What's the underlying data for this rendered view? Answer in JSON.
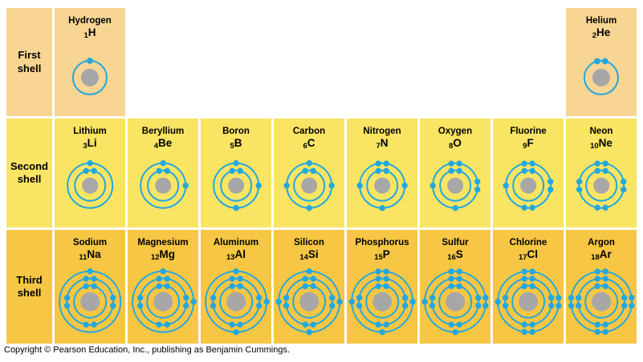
{
  "title": "Electron shell diagrams of the first 18 elements",
  "colors": {
    "row_first_bg": "#F8D593",
    "row_second_bg": "#F9E463",
    "row_third_bg": "#F6C644",
    "electron": "#22A8E0",
    "orbit": "#22A8E0",
    "nucleus": "#A7A7A7",
    "text": "#000000",
    "gap": "#FFFFFF"
  },
  "rows": [
    {
      "label_lines": [
        "First",
        "shell"
      ],
      "label_id": "first",
      "bg": "#F8D593",
      "elements": [
        {
          "col": 1,
          "name": "Hydrogen",
          "atomic_number": "1",
          "symbol": "H",
          "shells": [
            1
          ]
        },
        {
          "col": 8,
          "name": "Helium",
          "atomic_number": "2",
          "symbol": "He",
          "shells": [
            2
          ]
        }
      ]
    },
    {
      "label_lines": [
        "Second",
        "shell"
      ],
      "label_id": "second",
      "bg": "#F9E463",
      "elements": [
        {
          "col": 1,
          "name": "Lithium",
          "atomic_number": "3",
          "symbol": "Li",
          "shells": [
            2,
            1
          ]
        },
        {
          "col": 2,
          "name": "Beryllium",
          "atomic_number": "4",
          "symbol": "Be",
          "shells": [
            2,
            2
          ]
        },
        {
          "col": 3,
          "name": "Boron",
          "atomic_number": "5",
          "symbol": "B",
          "shells": [
            2,
            3
          ]
        },
        {
          "col": 4,
          "name": "Carbon",
          "atomic_number": "6",
          "symbol": "C",
          "shells": [
            2,
            4
          ]
        },
        {
          "col": 5,
          "name": "Nitrogen",
          "atomic_number": "7",
          "symbol": "N",
          "shells": [
            2,
            5
          ]
        },
        {
          "col": 6,
          "name": "Oxygen",
          "atomic_number": "8",
          "symbol": "O",
          "shells": [
            2,
            6
          ]
        },
        {
          "col": 7,
          "name": "Fluorine",
          "atomic_number": "9",
          "symbol": "F",
          "shells": [
            2,
            7
          ]
        },
        {
          "col": 8,
          "name": "Neon",
          "atomic_number": "10",
          "symbol": "Ne",
          "shells": [
            2,
            8
          ]
        }
      ]
    },
    {
      "label_lines": [
        "Third",
        "shell"
      ],
      "label_id": "third",
      "bg": "#F6C644",
      "elements": [
        {
          "col": 1,
          "name": "Sodium",
          "atomic_number": "11",
          "symbol": "Na",
          "shells": [
            2,
            8,
            1
          ]
        },
        {
          "col": 2,
          "name": "Magnesium",
          "atomic_number": "12",
          "symbol": "Mg",
          "shells": [
            2,
            8,
            2
          ]
        },
        {
          "col": 3,
          "name": "Aluminum",
          "atomic_number": "13",
          "symbol": "Al",
          "shells": [
            2,
            8,
            3
          ]
        },
        {
          "col": 4,
          "name": "Silicon",
          "atomic_number": "14",
          "symbol": "Si",
          "shells": [
            2,
            8,
            4
          ]
        },
        {
          "col": 5,
          "name": "Phosphorus",
          "atomic_number": "15",
          "symbol": "P",
          "shells": [
            2,
            8,
            5
          ]
        },
        {
          "col": 6,
          "name": "Sulfur",
          "atomic_number": "16",
          "symbol": "S",
          "shells": [
            2,
            8,
            6
          ]
        },
        {
          "col": 7,
          "name": "Chlorine",
          "atomic_number": "17",
          "symbol": "Cl",
          "shells": [
            2,
            8,
            7
          ]
        },
        {
          "col": 8,
          "name": "Argon",
          "atomic_number": "18",
          "symbol": "Ar",
          "shells": [
            2,
            8,
            8
          ]
        }
      ]
    }
  ],
  "footer": {
    "copyright": "Copyright © Pearson Education, Inc., publishing as Benjamin Cummings."
  }
}
